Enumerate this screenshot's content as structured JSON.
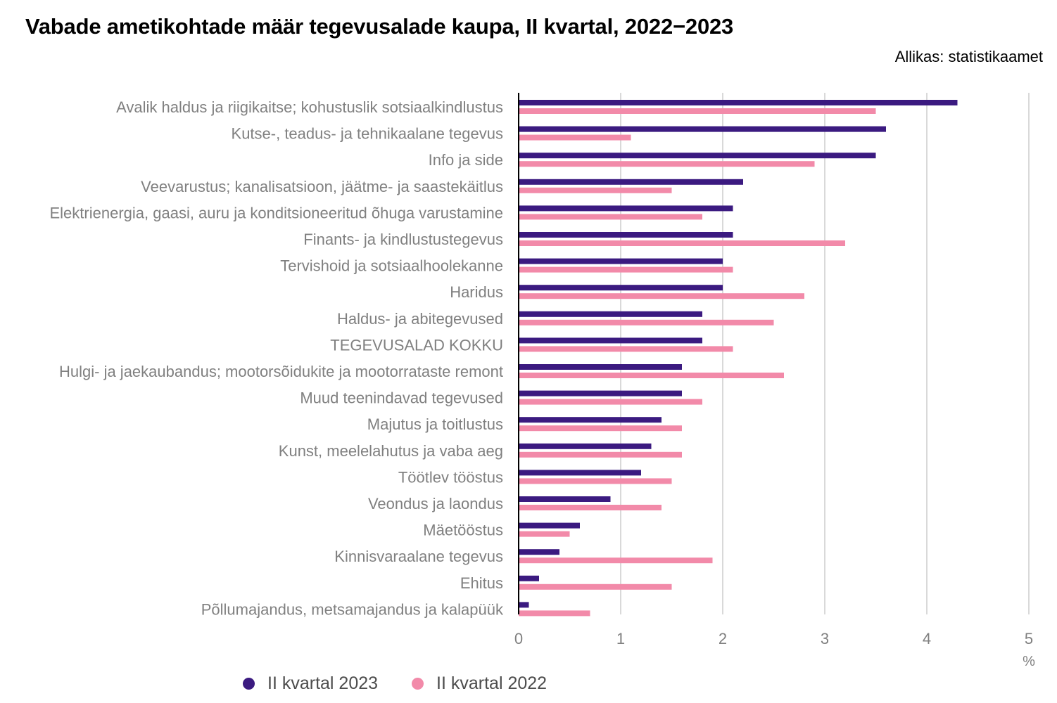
{
  "title": "Vabade ametikohtade määr tegevusalade kaupa, II kvartal, 2022−2023",
  "source": "Allikas: statistikaamet",
  "colors": {
    "series_2023": "#3b1a80",
    "series_2022": "#f28aa9",
    "grid": "#d9d9d9",
    "axis": "#000000"
  },
  "chart_data": {
    "type": "bar",
    "orientation": "horizontal",
    "categories": [
      "Avalik haldus ja riigikaitse; kohustuslik sotsiaalkindlustus",
      "Kutse-, teadus- ja tehnikaalane tegevus",
      "Info ja side",
      "Veevarustus; kanalisatsioon, jäätme- ja saastekäitlus",
      "Elektrienergia, gaasi, auru ja konditsioneeritud õhuga varustamine",
      "Finants- ja kindlustustegevus",
      "Tervishoid ja sotsiaalhoolekanne",
      "Haridus",
      "Haldus- ja abitegevused",
      "TEGEVUSALAD KOKKU",
      "Hulgi- ja jaekaubandus; mootorsõidukite ja mootorrataste remont",
      "Muud teenindavad tegevused",
      "Majutus ja toitlustus",
      "Kunst, meelelahutus ja vaba aeg",
      "Töötlev tööstus",
      "Veondus ja laondus",
      "Mäetööstus",
      "Kinnisvaraalane tegevus",
      "Ehitus",
      "Põllumajandus, metsamajandus ja kalapüük"
    ],
    "series": [
      {
        "name": "II kvartal 2023",
        "values": [
          4.3,
          3.6,
          3.5,
          2.2,
          2.1,
          2.1,
          2.0,
          2.0,
          1.8,
          1.8,
          1.6,
          1.6,
          1.4,
          1.3,
          1.2,
          0.9,
          0.6,
          0.4,
          0.2,
          0.1
        ]
      },
      {
        "name": "II kvartal 2022",
        "values": [
          3.5,
          1.1,
          2.9,
          1.5,
          1.8,
          3.2,
          2.1,
          2.8,
          2.5,
          2.1,
          2.6,
          1.8,
          1.6,
          1.6,
          1.5,
          1.4,
          0.5,
          1.9,
          1.5,
          0.7
        ]
      }
    ],
    "xlim": [
      0,
      5
    ],
    "xticks": [
      "0",
      "1",
      "2",
      "3",
      "4",
      "5"
    ],
    "xunit": "%",
    "grid": true,
    "legend_position": "bottom-left"
  }
}
